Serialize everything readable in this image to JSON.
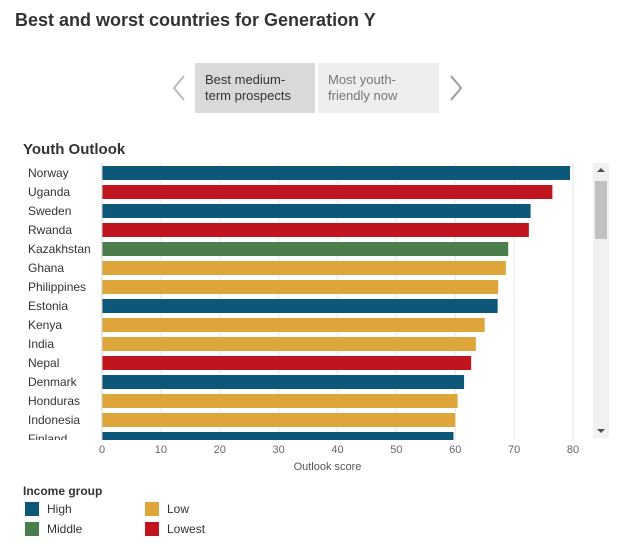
{
  "page": {
    "title": "Best and worst countries for Generation Y"
  },
  "toggle": {
    "active_label": "Best medium-term prospects",
    "inactive_label": "Most youth-friendly now"
  },
  "colors": {
    "High": "#0d5778",
    "Middle": "#4c7d4c",
    "Low": "#dea63a",
    "Lowest": "#c0141e"
  },
  "chart_data": {
    "type": "bar",
    "orientation": "horizontal",
    "title": "Youth Outlook",
    "xlabel": "Outlook score",
    "xlim": [
      0,
      80
    ],
    "xticks": [
      0,
      10,
      20,
      30,
      40,
      50,
      60,
      70,
      80
    ],
    "grid": true,
    "categories": [
      "Norway",
      "Uganda",
      "Sweden",
      "Rwanda",
      "Kazakhstan",
      "Ghana",
      "Philippines",
      "Estonia",
      "Kenya",
      "India",
      "Nepal",
      "Denmark",
      "Honduras",
      "Indonesia",
      "Finland"
    ],
    "values": [
      79.5,
      76.5,
      72.8,
      72.5,
      69.0,
      68.6,
      67.3,
      67.2,
      65.0,
      63.5,
      62.7,
      61.5,
      60.4,
      60.0,
      59.7
    ],
    "groups": [
      "High",
      "Lowest",
      "High",
      "Lowest",
      "Middle",
      "Low",
      "Low",
      "High",
      "Low",
      "Low",
      "Lowest",
      "High",
      "Low",
      "Low",
      "High"
    ],
    "legend": {
      "title": "Income group",
      "placement": "bottom-left",
      "entries": [
        "High",
        "Low",
        "Middle",
        "Lowest"
      ]
    }
  },
  "icons": {
    "prev": "chevron-left-icon",
    "next": "chevron-right-icon",
    "scroll_up": "caret-up-icon",
    "scroll_down": "caret-down-icon"
  }
}
